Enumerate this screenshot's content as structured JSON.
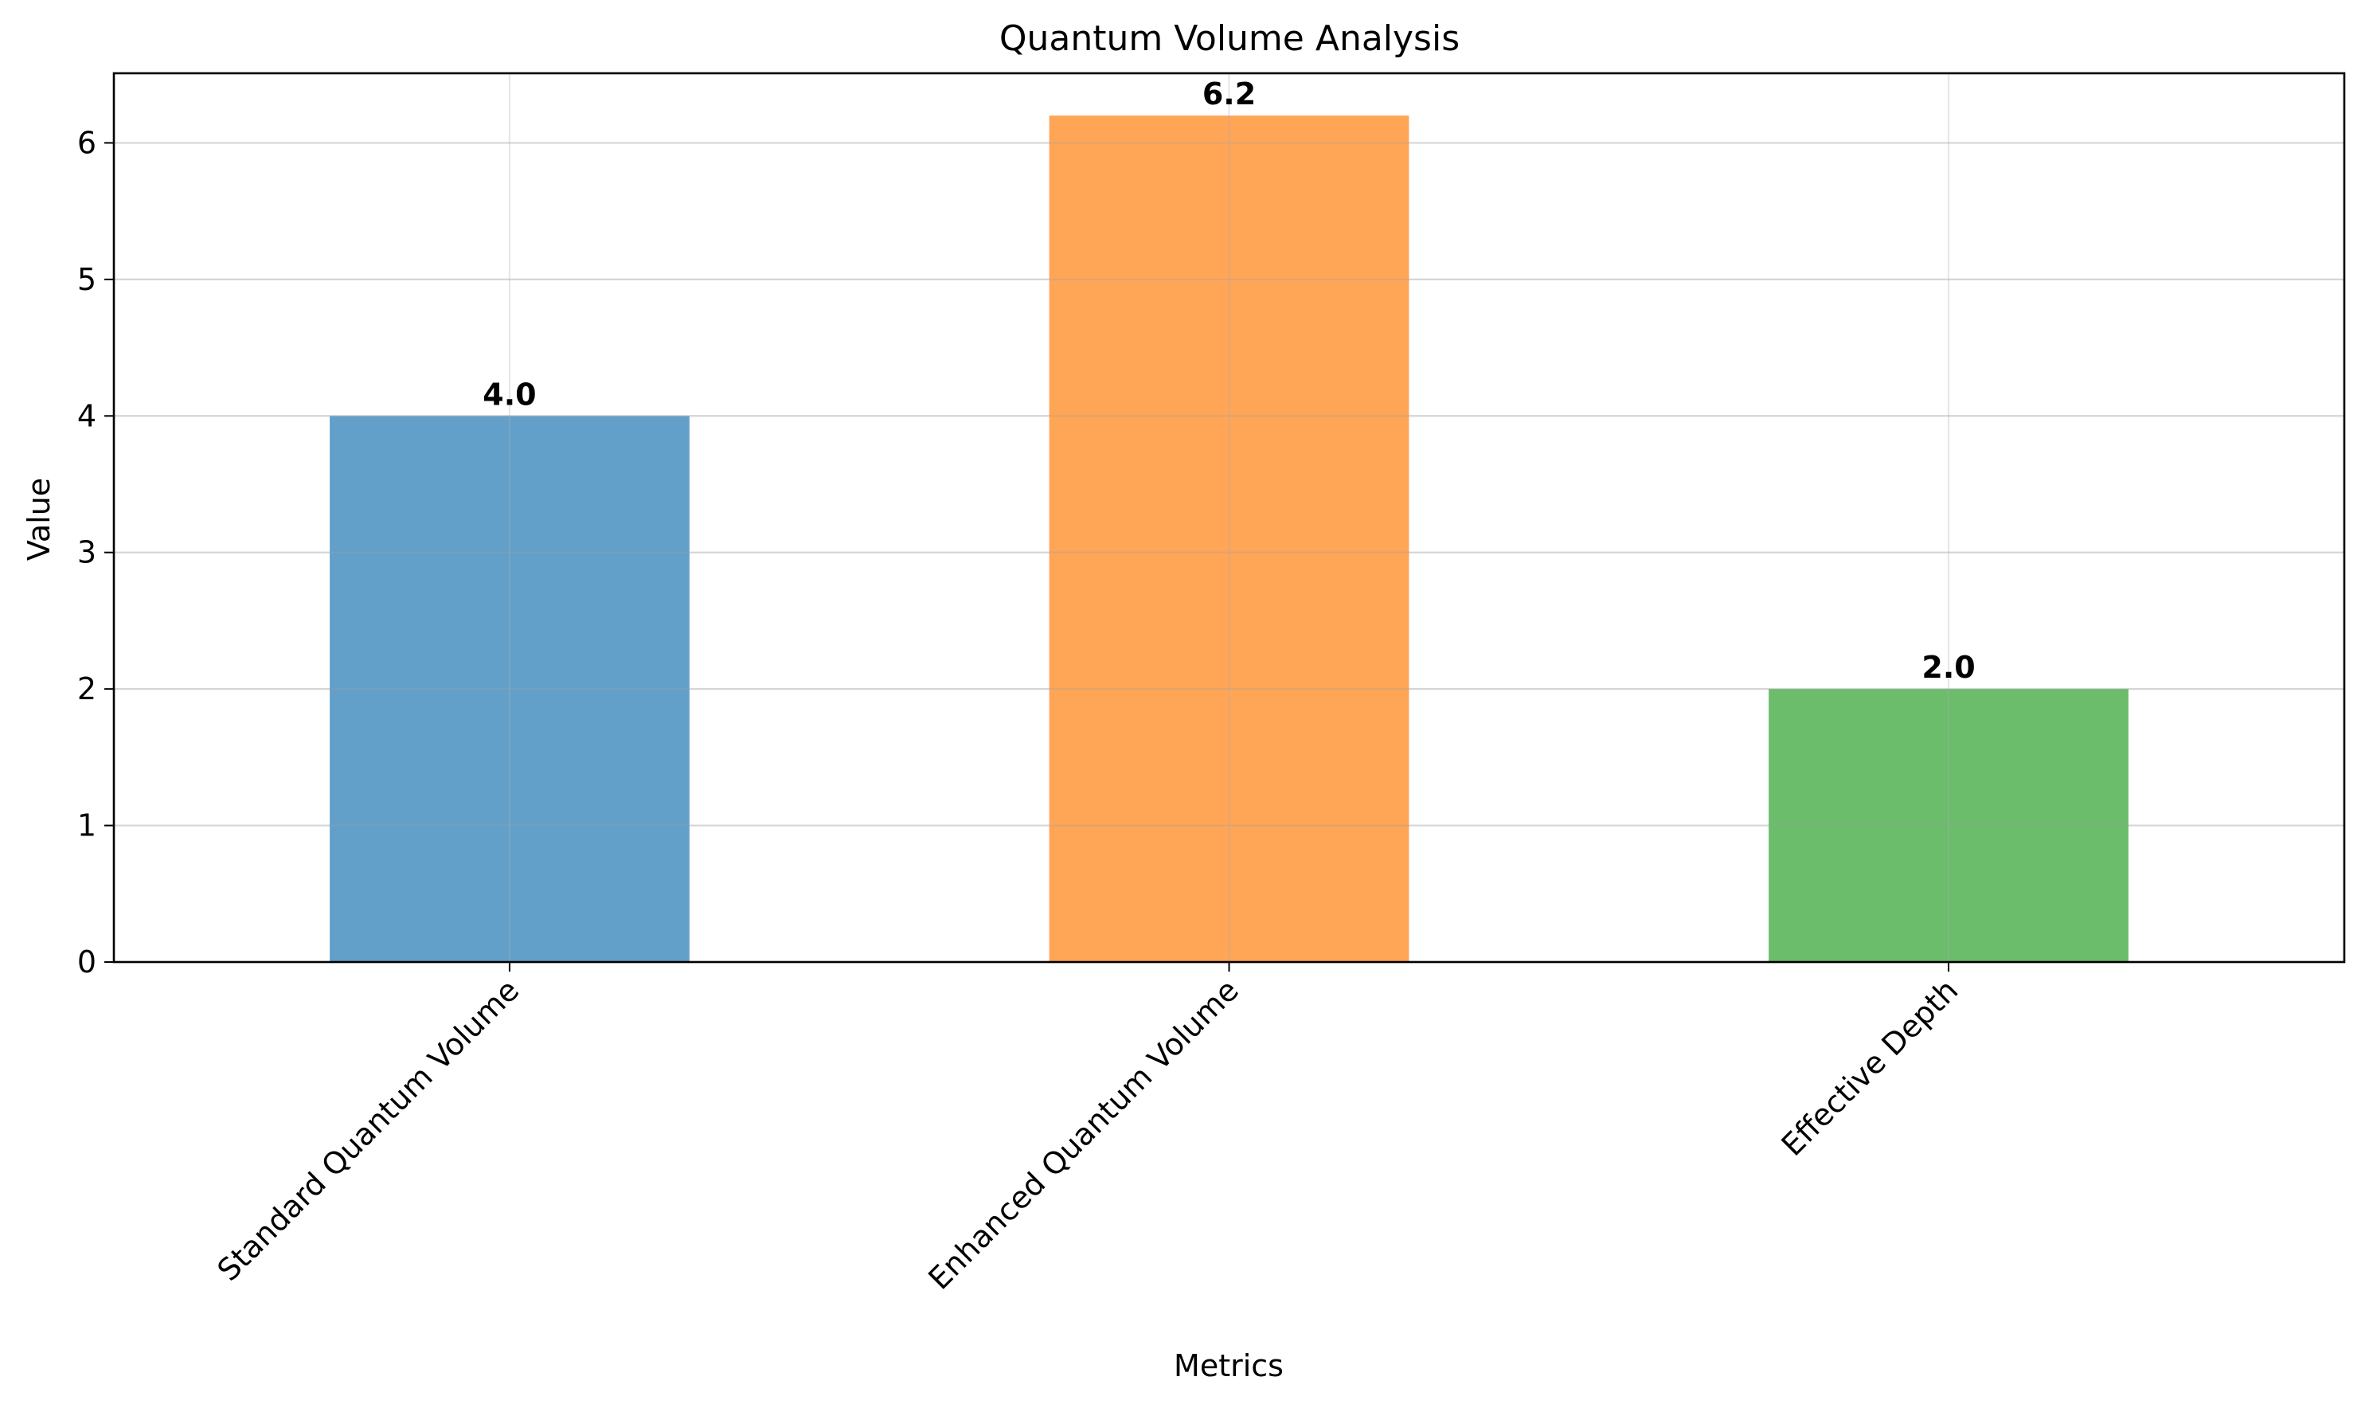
{
  "chart_data": {
    "type": "bar",
    "title": "Quantum Volume Analysis",
    "xlabel": "Metrics",
    "ylabel": "Value",
    "categories": [
      "Standard Quantum Volume",
      "Enhanced Quantum Volume",
      "Effective Depth"
    ],
    "values": [
      4.0,
      6.2,
      2.0
    ],
    "data_labels": [
      "4.0",
      "6.2",
      "2.0"
    ],
    "bar_colors": [
      "#1f77b4",
      "#ff7f0e",
      "#2ca02c"
    ],
    "bar_opacity": 0.7,
    "ylim": [
      0,
      6.51
    ],
    "yticks": [
      0,
      1,
      2,
      3,
      4,
      5,
      6
    ],
    "grid": true,
    "legend": "none"
  }
}
